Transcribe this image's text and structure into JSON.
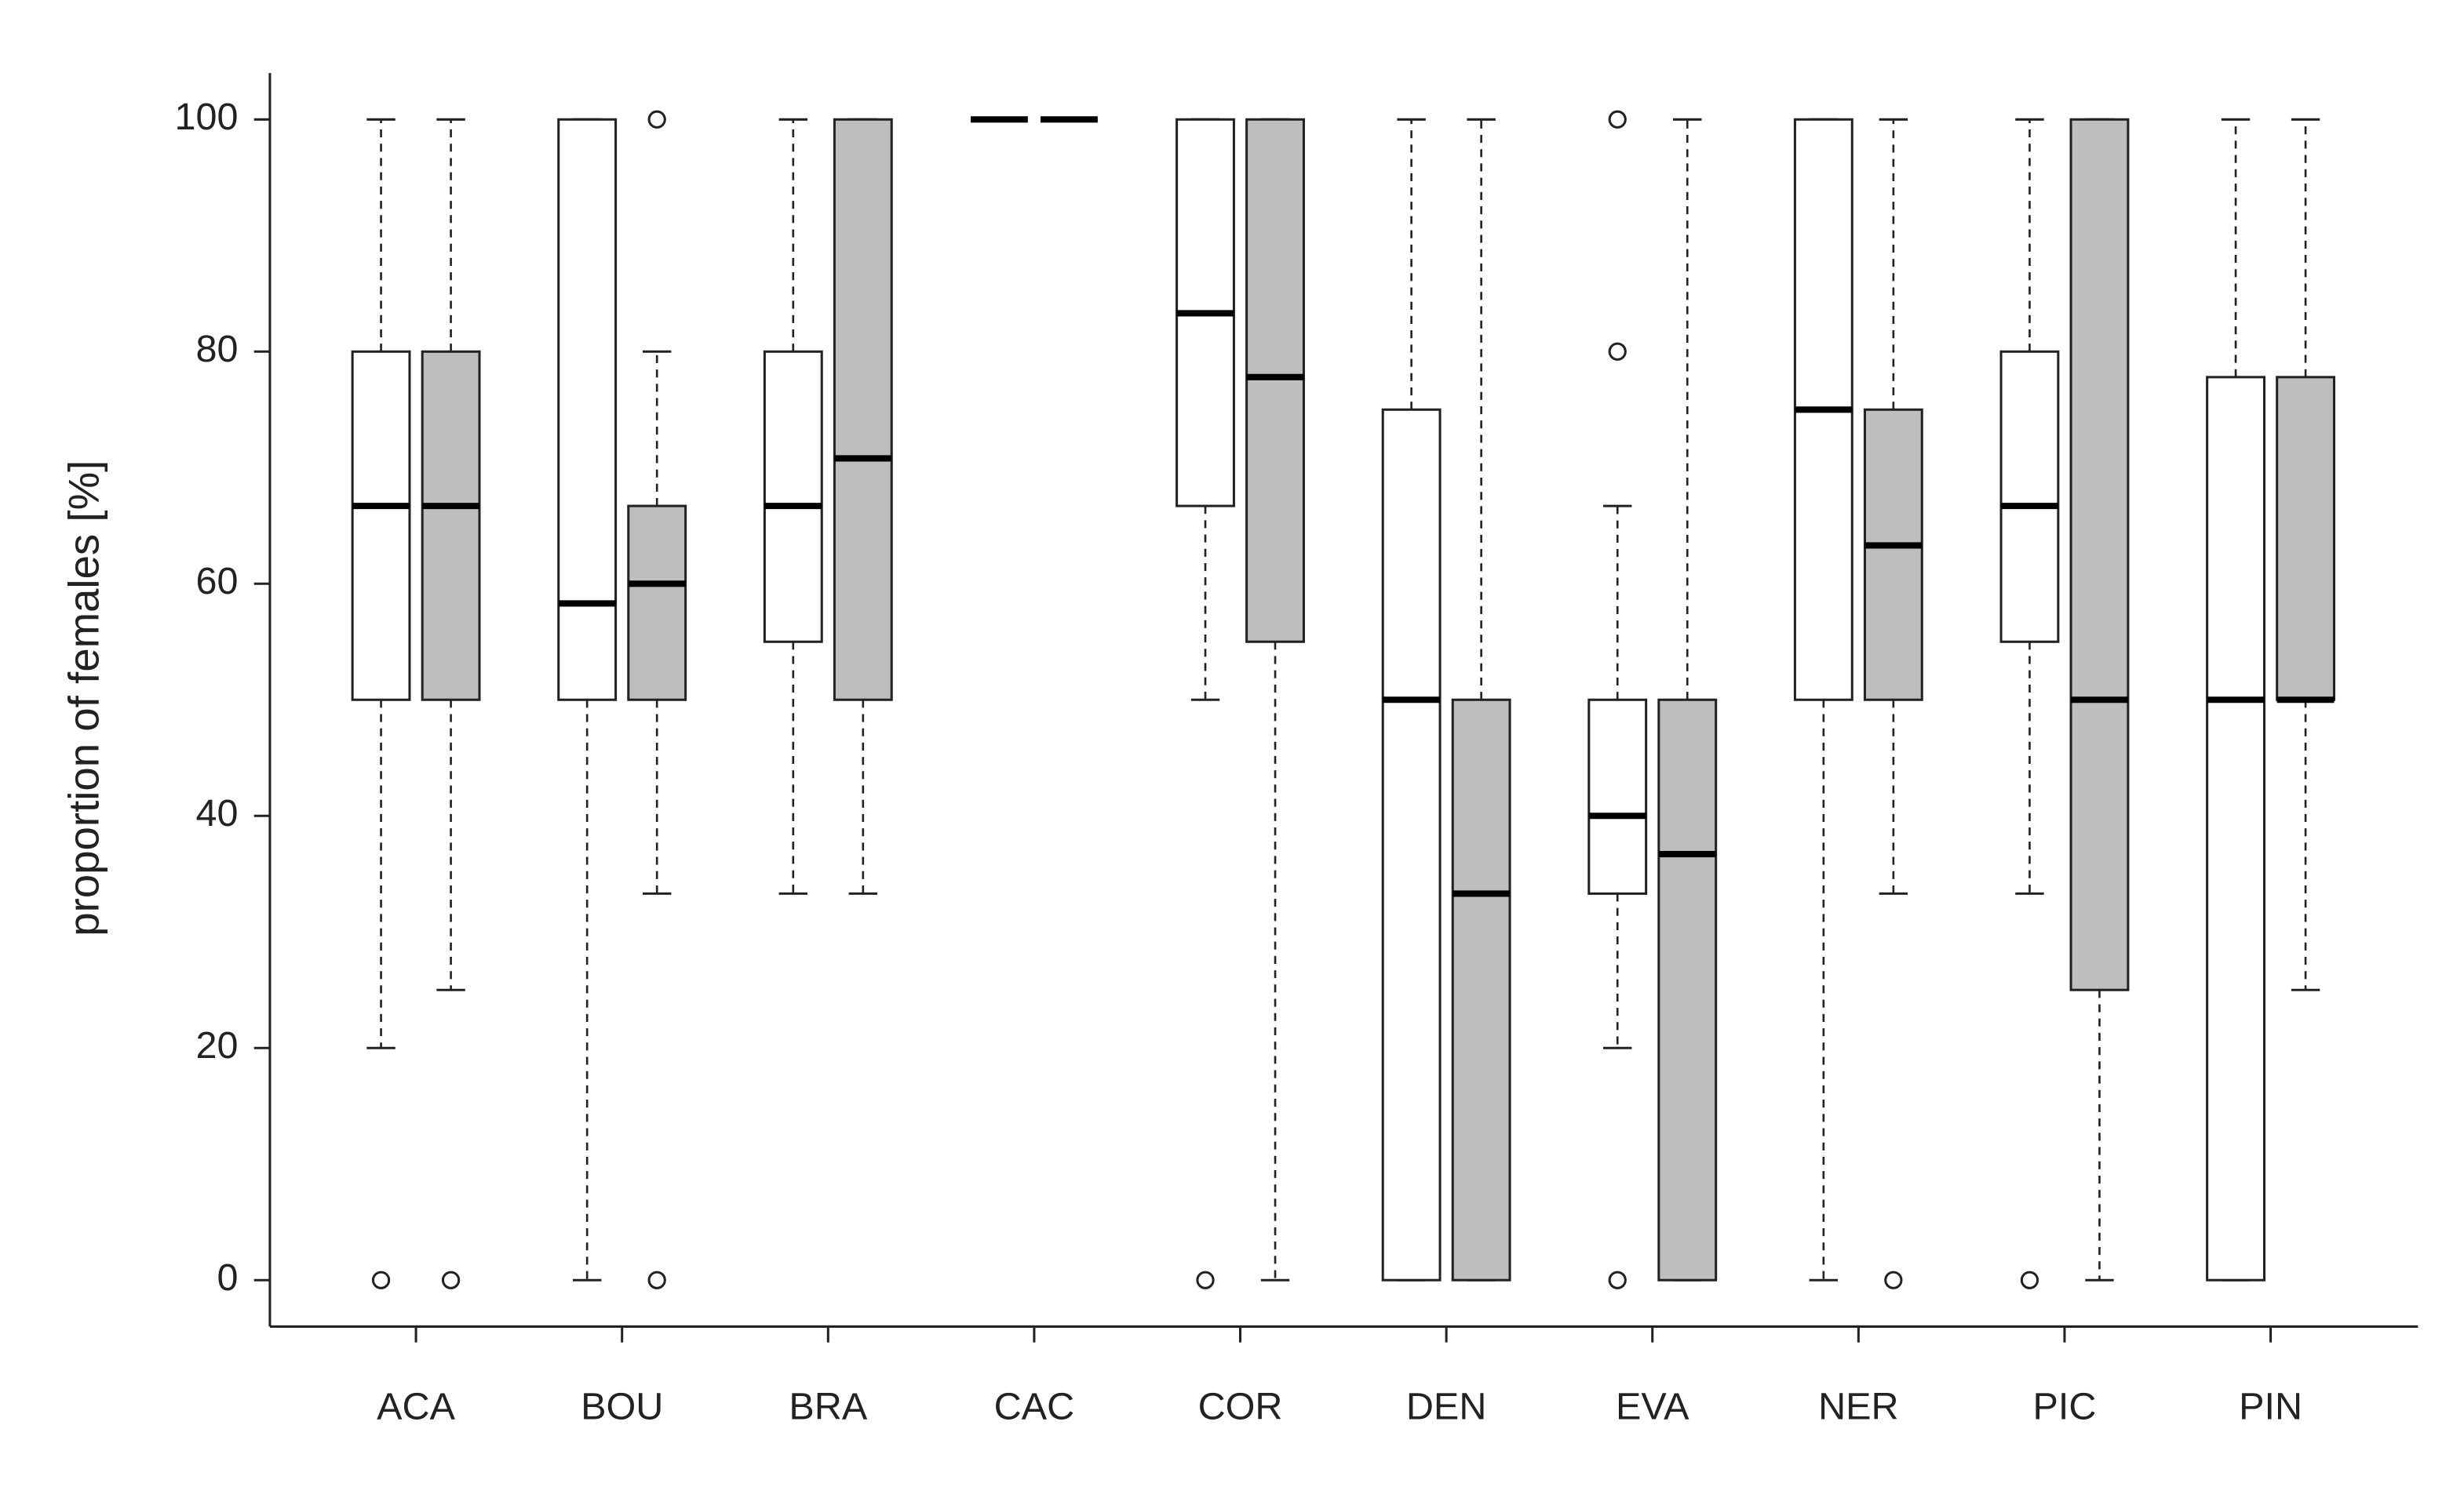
{
  "chart_data": {
    "type": "box",
    "y_label": "proportion of females [%]",
    "categories": [
      "ACA",
      "BOU",
      "BRA",
      "CAC",
      "COR",
      "DEN",
      "EVA",
      "NER",
      "PIC",
      "PIN"
    ],
    "ylim": [
      -4,
      104
    ],
    "yticks": [
      0,
      20,
      40,
      60,
      80,
      100
    ],
    "series": [
      {
        "color": "#ffffff",
        "whislo": [
          20,
          0,
          33.3,
          100,
          50,
          0,
          20,
          0,
          33.3,
          0
        ],
        "q1": [
          50,
          50,
          55,
          100,
          66.7,
          0,
          33.3,
          50,
          55,
          0
        ],
        "median": [
          66.7,
          58.3,
          66.7,
          100,
          83.3,
          50,
          40,
          75,
          66.7,
          50
        ],
        "q3": [
          80,
          100,
          80,
          100,
          100,
          75,
          50,
          100,
          80,
          77.8
        ],
        "whishi": [
          100,
          100,
          100,
          100,
          100,
          100,
          66.7,
          100,
          100,
          100
        ],
        "outliers": [
          [
            0
          ],
          [],
          [],
          [],
          [
            0
          ],
          [],
          [
            100,
            80,
            0
          ],
          [],
          [
            0
          ],
          []
        ]
      },
      {
        "color": "#bebebe",
        "whislo": [
          25,
          33.3,
          33.3,
          100,
          0,
          0,
          0,
          33.3,
          0,
          25
        ],
        "q1": [
          50,
          50,
          50,
          100,
          55,
          0,
          0,
          50,
          25,
          50
        ],
        "median": [
          66.7,
          60,
          70.8,
          100,
          77.8,
          33.3,
          36.7,
          63.3,
          50,
          50
        ],
        "q3": [
          80,
          66.7,
          100,
          100,
          100,
          50,
          50,
          75,
          100,
          77.8
        ],
        "whishi": [
          100,
          80,
          100,
          100,
          100,
          100,
          100,
          100,
          100,
          100
        ],
        "outliers": [
          [
            0
          ],
          [
            100,
            0
          ],
          [],
          [],
          [],
          [],
          [],
          [
            0
          ],
          [],
          []
        ]
      }
    ]
  }
}
